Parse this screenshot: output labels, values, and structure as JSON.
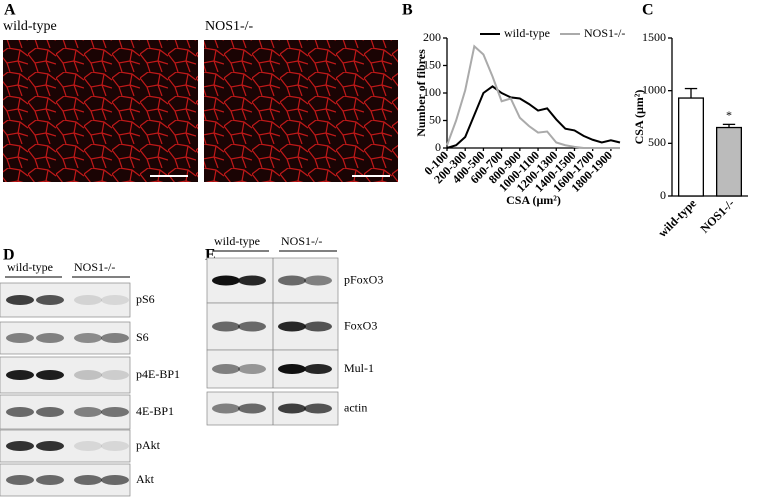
{
  "panel_labels": [
    "A",
    "B",
    "C",
    "D",
    "E"
  ],
  "panel_a": {
    "captions": [
      "wild-type",
      "NOS1-/-"
    ]
  },
  "chart_data": [
    {
      "type": "line",
      "y_label": "Number of fibres",
      "x_label": "CSA (μm²)",
      "categories": [
        "0-100",
        null,
        "200-300",
        null,
        "400-500",
        null,
        "600-700",
        null,
        "800-900",
        null,
        "1000-1100",
        null,
        "1200-1300",
        null,
        "1400-1500",
        null,
        "1600-1700",
        null,
        "1800-1900",
        null
      ],
      "series": [
        {
          "name": "wild-type",
          "color": "#000000",
          "values": [
            0,
            5,
            20,
            60,
            100,
            112,
            100,
            92,
            90,
            80,
            68,
            72,
            52,
            35,
            32,
            22,
            15,
            10,
            14,
            10
          ]
        },
        {
          "name": "NOS1-/-",
          "color": "#aaaaaa",
          "values": [
            5,
            50,
            105,
            185,
            170,
            130,
            85,
            90,
            55,
            40,
            28,
            30,
            10,
            5,
            2,
            0,
            0,
            0,
            0,
            0
          ]
        }
      ],
      "ylim": [
        0,
        200
      ],
      "yticks": [
        0,
        50,
        100,
        150,
        200
      ],
      "legend": "top-right"
    },
    {
      "type": "bar",
      "y_label": "CSA (μm²)",
      "categories": [
        "wild-type",
        "NOS1-/-"
      ],
      "values": [
        930,
        650
      ],
      "errors": [
        90,
        30
      ],
      "colors": [
        "#ffffff",
        "#bbbbbb"
      ],
      "annotation": "*",
      "ylim": [
        0,
        1500
      ],
      "yticks": [
        0,
        500,
        1000,
        1500
      ]
    }
  ],
  "panel_d": {
    "groups": [
      "wild-type",
      "NOS1-/-"
    ],
    "rows": [
      "pS6",
      "S6",
      "p4E-BP1",
      "4E-BP1",
      "pAkt",
      "Akt"
    ]
  },
  "panel_e": {
    "groups": [
      "wild-type",
      "NOS1-/-"
    ],
    "rows": [
      "pFoxO3",
      "FoxO3",
      "Mul-1",
      "actin"
    ]
  }
}
